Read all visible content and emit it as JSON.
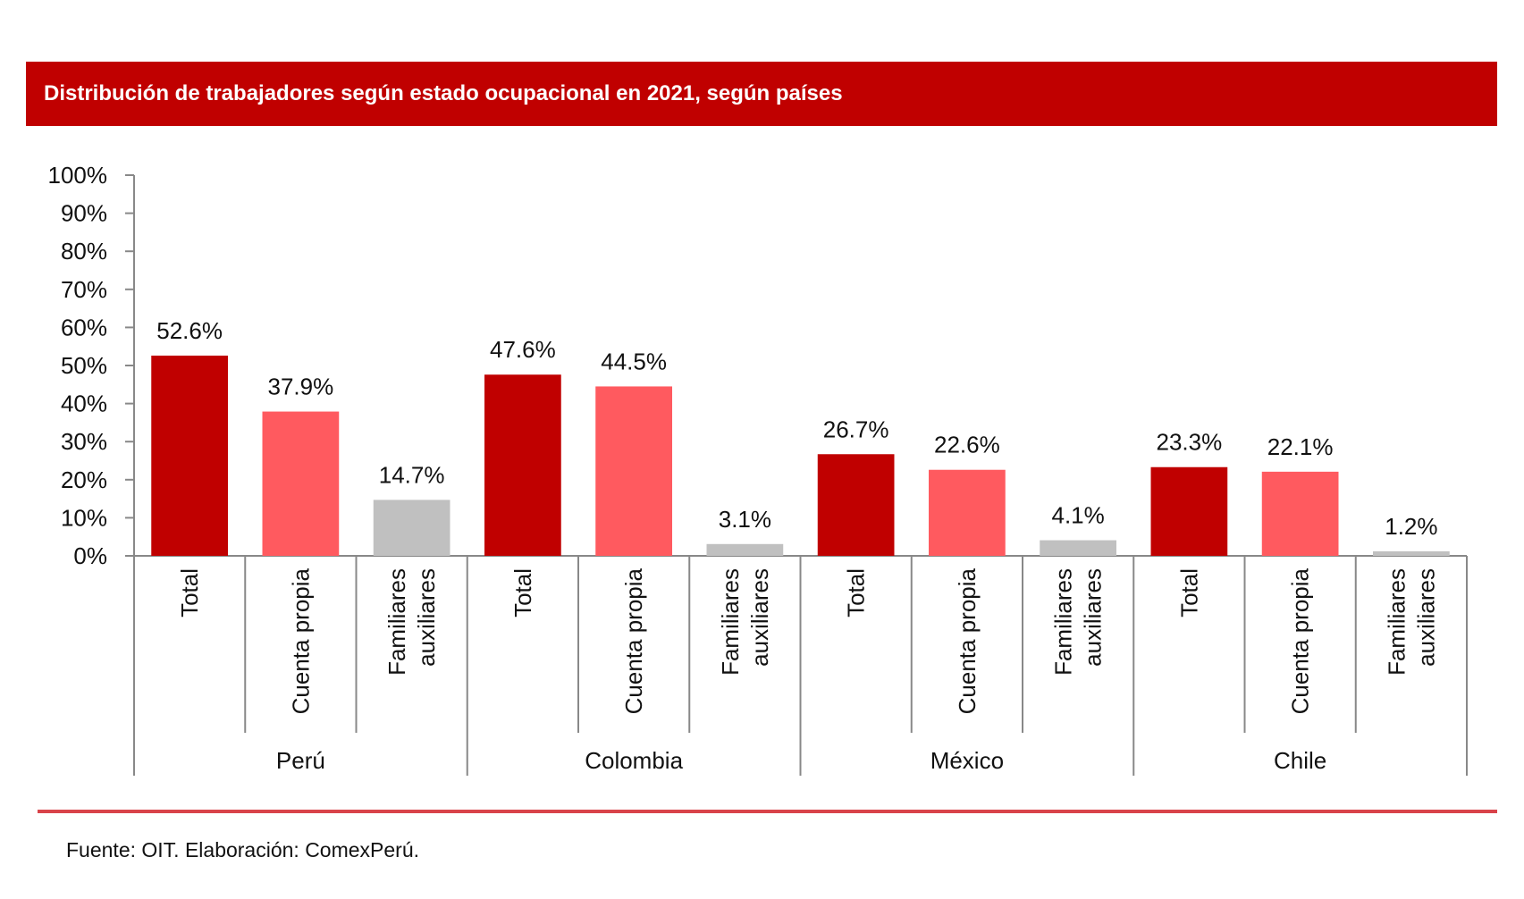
{
  "title": "Distribución de trabajadores según estado ocupacional en 2021, según países",
  "source": "Fuente: OIT.  Elaboración: ComexPerú.",
  "colors": {
    "title_bar": "#c00000",
    "Total": "#c00000",
    "Cuenta propia": "#ff5a5f",
    "Familiares auxiliares": "#c0c0c0",
    "bottom_rule": "#d9434a"
  },
  "chart_data": {
    "type": "bar",
    "title": "Distribución de trabajadores según estado ocupacional en 2021, según países",
    "xlabel": "",
    "ylabel": "",
    "ylim": [
      0,
      100
    ],
    "y_ticks": [
      "0%",
      "10%",
      "20%",
      "30%",
      "40%",
      "50%",
      "60%",
      "70%",
      "80%",
      "90%",
      "100%"
    ],
    "grid": false,
    "legend": "none",
    "groups": [
      {
        "name": "Perú",
        "bars": [
          {
            "category": "Total",
            "value": 52.6,
            "label": "52.6%"
          },
          {
            "category": "Cuenta propia",
            "value": 37.9,
            "label": "37.9%"
          },
          {
            "category": "Familiares auxiliares",
            "value": 14.7,
            "label": "14.7%"
          }
        ]
      },
      {
        "name": "Colombia",
        "bars": [
          {
            "category": "Total",
            "value": 47.6,
            "label": "47.6%"
          },
          {
            "category": "Cuenta propia",
            "value": 44.5,
            "label": "44.5%"
          },
          {
            "category": "Familiares auxiliares",
            "value": 3.1,
            "label": "3.1%"
          }
        ]
      },
      {
        "name": "México",
        "bars": [
          {
            "category": "Total",
            "value": 26.7,
            "label": "26.7%"
          },
          {
            "category": "Cuenta propia",
            "value": 22.6,
            "label": "22.6%"
          },
          {
            "category": "Familiares auxiliares",
            "value": 4.1,
            "label": "4.1%"
          }
        ]
      },
      {
        "name": "Chile",
        "bars": [
          {
            "category": "Total",
            "value": 23.3,
            "label": "23.3%"
          },
          {
            "category": "Cuenta propia",
            "value": 22.1,
            "label": "22.1%"
          },
          {
            "category": "Familiares auxiliares",
            "value": 1.2,
            "label": "1.2%"
          }
        ]
      }
    ]
  }
}
